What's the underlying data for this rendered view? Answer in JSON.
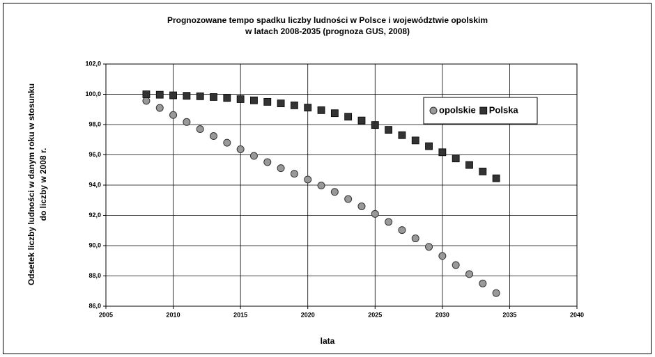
{
  "chart_data": {
    "type": "scatter",
    "title": [
      "Prognozowane tempo spadku liczby ludności w Polsce i województwie opolskim",
      "w latach 2008-2035 (prognoza GUS, 2008)"
    ],
    "xlabel": "lata",
    "ylabel": [
      "Odsetek liczby  ludności w danym roku w stosunku",
      "do liczby w 2008 r."
    ],
    "x": [
      2008,
      2009,
      2010,
      2011,
      2012,
      2013,
      2014,
      2015,
      2016,
      2017,
      2018,
      2019,
      2020,
      2021,
      2022,
      2023,
      2024,
      2025,
      2026,
      2027,
      2028,
      2029,
      2030,
      2031,
      2032,
      2033,
      2034
    ],
    "series": [
      {
        "name": "opolskie",
        "color": "#999999",
        "marker": "circle",
        "values": [
          99.57,
          99.1,
          98.63,
          98.17,
          97.7,
          97.24,
          96.8,
          96.37,
          95.93,
          95.52,
          95.12,
          94.75,
          94.37,
          93.97,
          93.55,
          93.08,
          92.6,
          92.1,
          91.57,
          91.03,
          90.48,
          89.92,
          89.32,
          88.72,
          88.12,
          87.5,
          86.87
        ]
      },
      {
        "name": "Polska",
        "color": "#333333",
        "marker": "square",
        "values": [
          100.0,
          99.97,
          99.93,
          99.9,
          99.87,
          99.82,
          99.76,
          99.68,
          99.6,
          99.5,
          99.4,
          99.27,
          99.12,
          98.95,
          98.75,
          98.52,
          98.27,
          97.97,
          97.65,
          97.3,
          96.95,
          96.57,
          96.17,
          95.76,
          95.33,
          94.9,
          94.45
        ]
      }
    ],
    "xlim": [
      2005,
      2040
    ],
    "xticks": [
      2005,
      2010,
      2015,
      2020,
      2025,
      2030,
      2035,
      2040
    ],
    "ylim": [
      86,
      102
    ],
    "yticks": [
      {
        "value": 86,
        "label": "86,0"
      },
      {
        "value": 88,
        "label": "88,0"
      },
      {
        "value": 90,
        "label": "90,0"
      },
      {
        "value": 92,
        "label": "92,0"
      },
      {
        "value": 94,
        "label": "94,0"
      },
      {
        "value": 96,
        "label": "96,0"
      },
      {
        "value": 98,
        "label": "98,0"
      },
      {
        "value": 100,
        "label": "100,0"
      },
      {
        "value": 102,
        "label": "102,0"
      }
    ],
    "grid": true,
    "legend": "upper right"
  }
}
